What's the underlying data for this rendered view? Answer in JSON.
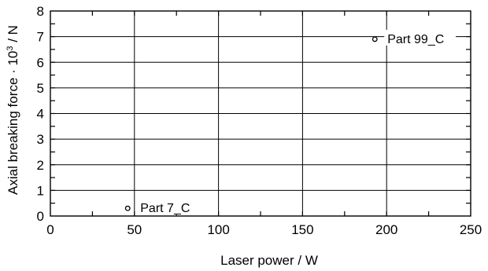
{
  "chart_data": {
    "type": "scatter",
    "title": "",
    "xlabel": "Laser power  / W",
    "ylabel_parts": {
      "pre": "Axial breaking force · 10",
      "sup": "3",
      "post": " / N"
    },
    "xlim": [
      0,
      250
    ],
    "ylim": [
      0,
      8
    ],
    "x_ticks": [
      0,
      50,
      100,
      150,
      200,
      250
    ],
    "x_tick_labels": [
      "0",
      "50",
      "100",
      "150",
      "200",
      "250"
    ],
    "y_ticks": [
      0,
      1,
      2,
      3,
      4,
      5,
      6,
      7,
      8
    ],
    "y_tick_labels": [
      "0",
      "1",
      "2",
      "3",
      "4",
      "5",
      "6",
      "7",
      "8"
    ],
    "x_minor_step": 25,
    "y_minor_step": 0.5,
    "grid": true,
    "marker": "open-circle",
    "points": [
      {
        "x": 46,
        "y": 0.3,
        "label": "Part 7_C"
      },
      {
        "x": 193,
        "y": 6.9,
        "label": "Part 99_C"
      }
    ]
  }
}
